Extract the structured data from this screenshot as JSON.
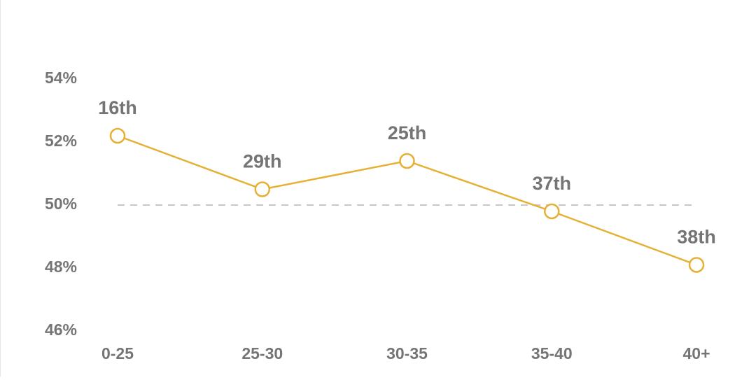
{
  "chart_data": {
    "type": "line",
    "categories": [
      "0-25",
      "25-30",
      "30-35",
      "35-40",
      "40+"
    ],
    "values": [
      52.2,
      50.5,
      51.4,
      49.8,
      48.1
    ],
    "rank_labels": [
      "16th",
      "29th",
      "25th",
      "37th",
      "38th"
    ],
    "color": "#e6b035",
    "reference_line": 50,
    "ylim": [
      46,
      54
    ],
    "yticks": [
      {
        "value": 46,
        "label": "46%"
      },
      {
        "value": 48,
        "label": "48%"
      },
      {
        "value": 50,
        "label": "50%"
      },
      {
        "value": 52,
        "label": "52%"
      },
      {
        "value": 54,
        "label": "54%"
      }
    ]
  }
}
